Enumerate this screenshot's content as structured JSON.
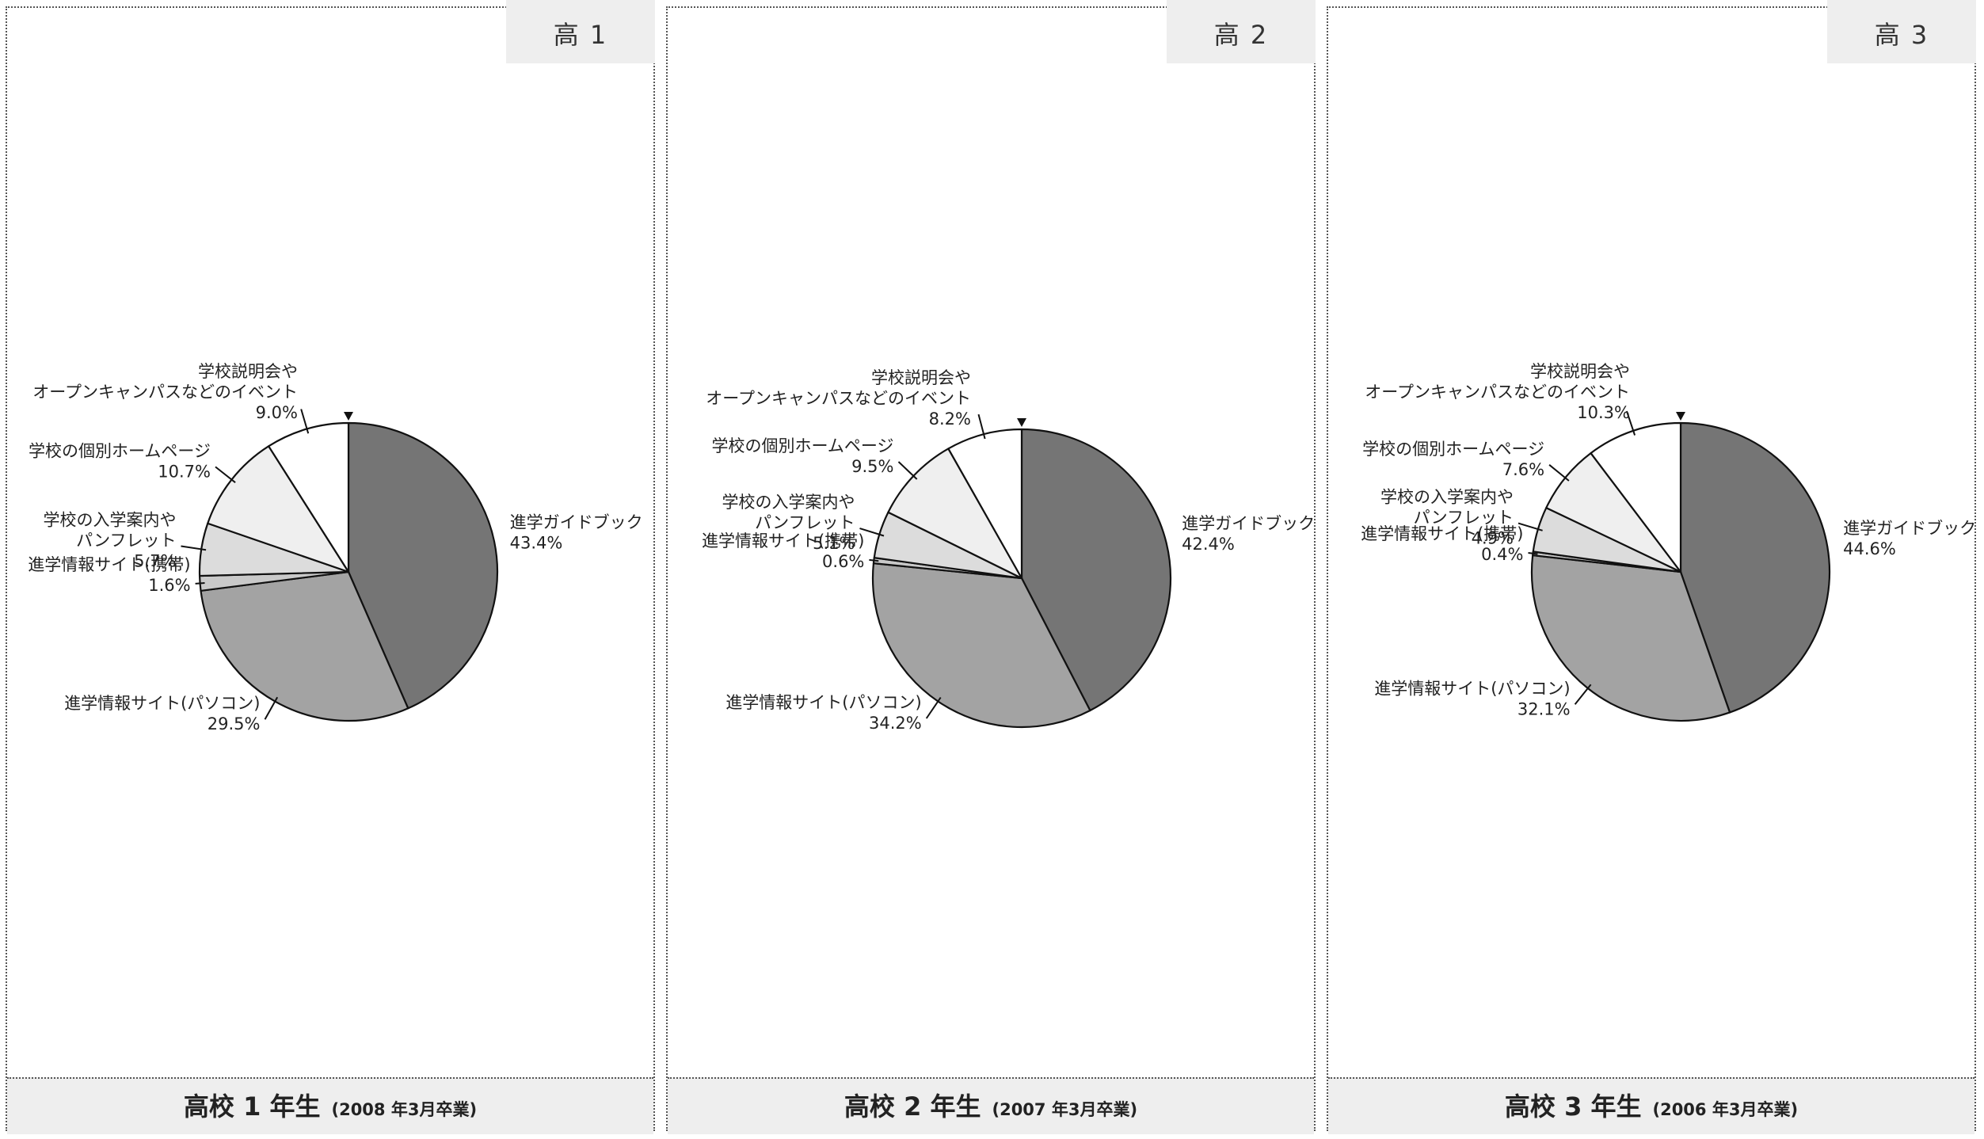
{
  "panels": [
    {
      "tag": "高 1",
      "footer_main": "高校 1 年生",
      "footer_sub": "(2008 年3月卒業)"
    },
    {
      "tag": "高 2",
      "footer_main": "高校 2 年生",
      "footer_sub": "(2007 年3月卒業)"
    },
    {
      "tag": "高 3",
      "footer_main": "高校 3 年生",
      "footer_sub": "(2006 年3月卒業)"
    }
  ],
  "chart_data": [
    {
      "type": "pie",
      "categories": [
        "進学ガイドブック",
        "進学情報サイト(パソコン)",
        "進学情報サイト(携帯)",
        "学校の入学案内やパンフレット",
        "学校の個別ホームページ",
        "学校説明会やオープンキャンパスなどのイベント"
      ],
      "values": [
        43.4,
        29.5,
        1.6,
        5.7,
        10.7,
        9.0
      ],
      "display_values": [
        "43.4%",
        "29.5%",
        "1.6%",
        "5.7%",
        "10.7%",
        "9.0%"
      ],
      "label_lines": [
        [
          "進学ガイドブック"
        ],
        [
          "進学情報サイト(パソコン)"
        ],
        [
          "進学情報サイト(携帯)"
        ],
        [
          "学校の入学案内や",
          "パンフレット"
        ],
        [
          "学校の個別ホームページ"
        ],
        [
          "学校説明会や",
          "オープンキャンパスなどのイベント"
        ]
      ],
      "colors": [
        "#757575",
        "#a3a3a3",
        "#c9c9c9",
        "#dcdcdc",
        "#efefef",
        "#ffffff"
      ],
      "start": "top",
      "direction": "clockwise"
    },
    {
      "type": "pie",
      "categories": [
        "進学ガイドブック",
        "進学情報サイト(パソコン)",
        "進学情報サイト(携帯)",
        "学校の入学案内やパンフレット",
        "学校の個別ホームページ",
        "学校説明会やオープンキャンパスなどのイベント"
      ],
      "values": [
        42.4,
        34.2,
        0.6,
        5.1,
        9.5,
        8.2
      ],
      "display_values": [
        "42.4%",
        "34.2%",
        "0.6%",
        "5.1%",
        "9.5%",
        "8.2%"
      ],
      "label_lines": [
        [
          "進学ガイドブック"
        ],
        [
          "進学情報サイト(パソコン)"
        ],
        [
          "進学情報サイト(携帯)"
        ],
        [
          "学校の入学案内や",
          "パンフレット"
        ],
        [
          "学校の個別ホームページ"
        ],
        [
          "学校説明会や",
          "オープンキャンパスなどのイベント"
        ]
      ],
      "colors": [
        "#757575",
        "#a3a3a3",
        "#c9c9c9",
        "#dcdcdc",
        "#efefef",
        "#ffffff"
      ],
      "start": "top",
      "direction": "clockwise"
    },
    {
      "type": "pie",
      "categories": [
        "進学ガイドブック",
        "進学情報サイト(パソコン)",
        "進学情報サイト(携帯)",
        "学校の入学案内やパンフレット",
        "学校の個別ホームページ",
        "学校説明会やオープンキャンパスなどのイベント"
      ],
      "values": [
        44.6,
        32.1,
        0.4,
        4.9,
        7.6,
        10.3
      ],
      "display_values": [
        "44.6%",
        "32.1%",
        "0.4%",
        "4.9%",
        "7.6%",
        "10.3%"
      ],
      "label_lines": [
        [
          "進学ガイドブック"
        ],
        [
          "進学情報サイト(パソコン)"
        ],
        [
          "進学情報サイト(携帯)"
        ],
        [
          "学校の入学案内や",
          "パンフレット"
        ],
        [
          "学校の個別ホームページ"
        ],
        [
          "学校説明会や",
          "オープンキャンパスなどのイベント"
        ]
      ],
      "colors": [
        "#757575",
        "#a3a3a3",
        "#c9c9c9",
        "#dcdcdc",
        "#efefef",
        "#ffffff"
      ],
      "start": "top",
      "direction": "clockwise"
    }
  ]
}
